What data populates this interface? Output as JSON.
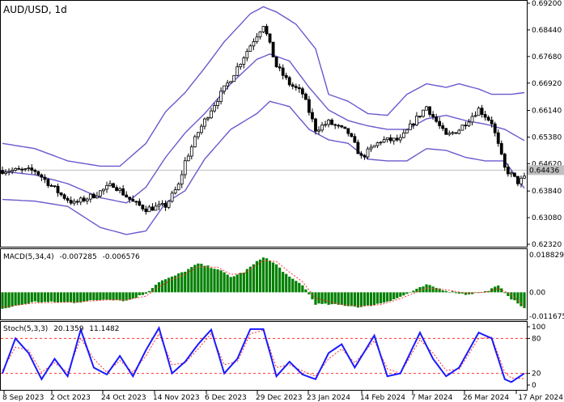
{
  "chart_data": [
    {
      "type": "candlestick",
      "title": "AUD/USD, 1d",
      "y_ticks": [
        "0.69200",
        "0.68440",
        "0.67680",
        "0.66920",
        "0.66140",
        "0.65380",
        "0.64620",
        "0.63840",
        "0.63080",
        "0.62320"
      ],
      "ylim": [
        0.6232,
        0.692
      ],
      "current_price": "0.64436",
      "x_ticks": [
        "8 Sep 2023",
        "2 Oct 2023",
        "24 Oct 2023",
        "14 Nov 2023",
        "6 Dec 2023",
        "29 Dec 2023",
        "23 Jan 2024",
        "14 Feb 2024",
        "7 Mar 2024",
        "26 Mar 2024",
        "17 Apr 2024"
      ],
      "indicator": "Bollinger Bands",
      "close_path": [
        [
          0,
          0.6443
        ],
        [
          10,
          0.6442
        ],
        [
          18,
          0.6373
        ],
        [
          22,
          0.6348
        ],
        [
          28,
          0.6372
        ],
        [
          34,
          0.6403
        ],
        [
          40,
          0.6352
        ],
        [
          44,
          0.6333
        ],
        [
          50,
          0.6342
        ],
        [
          54,
          0.64
        ],
        [
          56,
          0.6468
        ],
        [
          60,
          0.6552
        ],
        [
          64,
          0.6618
        ],
        [
          70,
          0.6705
        ],
        [
          76,
          0.68
        ],
        [
          80,
          0.686
        ],
        [
          84,
          0.674
        ],
        [
          88,
          0.669
        ],
        [
          92,
          0.6662
        ],
        [
          96,
          0.656
        ],
        [
          100,
          0.658
        ],
        [
          106,
          0.655
        ],
        [
          110,
          0.648
        ],
        [
          116,
          0.6528
        ],
        [
          122,
          0.653
        ],
        [
          126,
          0.658
        ],
        [
          130,
          0.6625
        ],
        [
          136,
          0.654
        ],
        [
          140,
          0.656
        ],
        [
          146,
          0.6618
        ],
        [
          150,
          0.658
        ],
        [
          154,
          0.6448
        ],
        [
          156,
          0.643
        ],
        [
          158,
          0.641
        ],
        [
          160,
          0.642
        ]
      ],
      "bollinger_upper": [
        [
          0,
          0.652
        ],
        [
          10,
          0.6505
        ],
        [
          20,
          0.647
        ],
        [
          30,
          0.6455
        ],
        [
          36,
          0.6455
        ],
        [
          44,
          0.652
        ],
        [
          50,
          0.661
        ],
        [
          56,
          0.6665
        ],
        [
          62,
          0.6735
        ],
        [
          68,
          0.681
        ],
        [
          76,
          0.689
        ],
        [
          80,
          0.691
        ],
        [
          84,
          0.6895
        ],
        [
          90,
          0.686
        ],
        [
          96,
          0.679
        ],
        [
          100,
          0.666
        ],
        [
          106,
          0.664
        ],
        [
          112,
          0.6605
        ],
        [
          118,
          0.66
        ],
        [
          124,
          0.666
        ],
        [
          130,
          0.669
        ],
        [
          136,
          0.668
        ],
        [
          140,
          0.669
        ],
        [
          146,
          0.6675
        ],
        [
          150,
          0.666
        ],
        [
          156,
          0.666
        ],
        [
          160,
          0.6665
        ]
      ],
      "bollinger_middle": [
        [
          0,
          0.644
        ],
        [
          10,
          0.643
        ],
        [
          20,
          0.6405
        ],
        [
          30,
          0.6365
        ],
        [
          38,
          0.635
        ],
        [
          44,
          0.6395
        ],
        [
          50,
          0.648
        ],
        [
          56,
          0.655
        ],
        [
          62,
          0.6605
        ],
        [
          70,
          0.669
        ],
        [
          78,
          0.676
        ],
        [
          82,
          0.6775
        ],
        [
          88,
          0.6755
        ],
        [
          94,
          0.668
        ],
        [
          100,
          0.6615
        ],
        [
          106,
          0.6585
        ],
        [
          112,
          0.657
        ],
        [
          118,
          0.656
        ],
        [
          124,
          0.656
        ],
        [
          130,
          0.659
        ],
        [
          136,
          0.66
        ],
        [
          142,
          0.6585
        ],
        [
          148,
          0.6575
        ],
        [
          154,
          0.656
        ],
        [
          160,
          0.6528
        ]
      ],
      "bollinger_lower": [
        [
          0,
          0.636
        ],
        [
          10,
          0.6355
        ],
        [
          20,
          0.634
        ],
        [
          30,
          0.628
        ],
        [
          38,
          0.626
        ],
        [
          44,
          0.627
        ],
        [
          50,
          0.635
        ],
        [
          56,
          0.6385
        ],
        [
          62,
          0.6475
        ],
        [
          70,
          0.656
        ],
        [
          78,
          0.6605
        ],
        [
          82,
          0.664
        ],
        [
          88,
          0.6625
        ],
        [
          94,
          0.656
        ],
        [
          100,
          0.653
        ],
        [
          106,
          0.652
        ],
        [
          112,
          0.6475
        ],
        [
          118,
          0.647
        ],
        [
          124,
          0.647
        ],
        [
          130,
          0.6505
        ],
        [
          136,
          0.65
        ],
        [
          142,
          0.648
        ],
        [
          148,
          0.647
        ],
        [
          154,
          0.647
        ],
        [
          160,
          0.6392
        ]
      ]
    },
    {
      "type": "bar",
      "title": "MACD(5,34,4)",
      "value_labels": [
        "-0.007285",
        "-0.006576"
      ],
      "y_ticks": [
        "0.018829",
        "0.00",
        "-0.011675"
      ],
      "ylim": [
        -0.011675,
        0.018829
      ],
      "histogram_path": [
        [
          0,
          -0.0078
        ],
        [
          10,
          -0.0045
        ],
        [
          22,
          -0.0048
        ],
        [
          32,
          -0.0032
        ],
        [
          38,
          -0.004
        ],
        [
          44,
          -0.0005
        ],
        [
          48,
          0.005
        ],
        [
          52,
          0.0072
        ],
        [
          56,
          0.01
        ],
        [
          60,
          0.0135
        ],
        [
          66,
          0.011
        ],
        [
          70,
          0.0072
        ],
        [
          74,
          0.0095
        ],
        [
          80,
          0.0168
        ],
        [
          84,
          0.013
        ],
        [
          88,
          0.007
        ],
        [
          92,
          0.0035
        ],
        [
          96,
          -0.0055
        ],
        [
          104,
          -0.006
        ],
        [
          110,
          -0.007
        ],
        [
          116,
          -0.0052
        ],
        [
          122,
          -0.0022
        ],
        [
          130,
          0.0035
        ],
        [
          136,
          0.0008
        ],
        [
          142,
          -0.001
        ],
        [
          148,
          0.0003
        ],
        [
          152,
          0.003
        ],
        [
          156,
          -0.003
        ],
        [
          160,
          -0.0075
        ]
      ],
      "signal_path": [
        [
          0,
          -0.007
        ],
        [
          10,
          -0.005
        ],
        [
          22,
          -0.0046
        ],
        [
          32,
          -0.0036
        ],
        [
          38,
          -0.0036
        ],
        [
          44,
          -0.0018
        ],
        [
          48,
          0.0025
        ],
        [
          52,
          0.006
        ],
        [
          56,
          0.0085
        ],
        [
          60,
          0.012
        ],
        [
          66,
          0.0118
        ],
        [
          70,
          0.0085
        ],
        [
          74,
          0.0088
        ],
        [
          80,
          0.015
        ],
        [
          84,
          0.0145
        ],
        [
          88,
          0.0095
        ],
        [
          92,
          0.005
        ],
        [
          96,
          -0.0028
        ],
        [
          104,
          -0.0058
        ],
        [
          110,
          -0.0066
        ],
        [
          116,
          -0.0058
        ],
        [
          122,
          -0.003
        ],
        [
          130,
          0.002
        ],
        [
          136,
          0.0012
        ],
        [
          142,
          -0.0004
        ],
        [
          148,
          0.0
        ],
        [
          152,
          0.0018
        ],
        [
          156,
          -0.001
        ],
        [
          160,
          -0.0066
        ]
      ]
    },
    {
      "type": "line",
      "title": "Stoch(5,3,3)",
      "value_labels": [
        "20.1359",
        "11.1482"
      ],
      "y_ticks": [
        "100",
        "80",
        "20",
        "0"
      ],
      "ylim": [
        0,
        100
      ],
      "levels": [
        80,
        20
      ],
      "main_path": [
        [
          0,
          20
        ],
        [
          4,
          80
        ],
        [
          8,
          55
        ],
        [
          12,
          10
        ],
        [
          16,
          45
        ],
        [
          20,
          15
        ],
        [
          24,
          95
        ],
        [
          28,
          30
        ],
        [
          32,
          18
        ],
        [
          36,
          50
        ],
        [
          40,
          15
        ],
        [
          44,
          60
        ],
        [
          48,
          98
        ],
        [
          52,
          20
        ],
        [
          56,
          40
        ],
        [
          60,
          70
        ],
        [
          64,
          95
        ],
        [
          68,
          20
        ],
        [
          72,
          45
        ],
        [
          76,
          96
        ],
        [
          80,
          96
        ],
        [
          84,
          15
        ],
        [
          88,
          40
        ],
        [
          92,
          18
        ],
        [
          96,
          10
        ],
        [
          100,
          55
        ],
        [
          104,
          70
        ],
        [
          108,
          30
        ],
        [
          114,
          85
        ],
        [
          118,
          15
        ],
        [
          122,
          20
        ],
        [
          128,
          90
        ],
        [
          132,
          45
        ],
        [
          136,
          15
        ],
        [
          140,
          30
        ],
        [
          146,
          90
        ],
        [
          150,
          80
        ],
        [
          154,
          10
        ],
        [
          156,
          5
        ],
        [
          160,
          20
        ]
      ],
      "signal_path": [
        [
          0,
          25
        ],
        [
          4,
          65
        ],
        [
          8,
          60
        ],
        [
          12,
          22
        ],
        [
          16,
          38
        ],
        [
          20,
          22
        ],
        [
          24,
          80
        ],
        [
          28,
          45
        ],
        [
          32,
          22
        ],
        [
          36,
          42
        ],
        [
          40,
          22
        ],
        [
          44,
          50
        ],
        [
          48,
          88
        ],
        [
          52,
          35
        ],
        [
          56,
          38
        ],
        [
          60,
          62
        ],
        [
          64,
          88
        ],
        [
          68,
          35
        ],
        [
          72,
          40
        ],
        [
          76,
          88
        ],
        [
          80,
          94
        ],
        [
          84,
          30
        ],
        [
          88,
          35
        ],
        [
          92,
          24
        ],
        [
          96,
          15
        ],
        [
          100,
          45
        ],
        [
          104,
          62
        ],
        [
          108,
          38
        ],
        [
          114,
          76
        ],
        [
          118,
          28
        ],
        [
          122,
          20
        ],
        [
          128,
          78
        ],
        [
          132,
          55
        ],
        [
          136,
          25
        ],
        [
          140,
          27
        ],
        [
          146,
          80
        ],
        [
          150,
          82
        ],
        [
          154,
          22
        ],
        [
          156,
          12
        ],
        [
          160,
          11
        ]
      ]
    }
  ],
  "colors": {
    "candle": "#000000",
    "bands": "#6a5acd",
    "macd_hist": "#008000",
    "macd_signal": "#ff3030",
    "stoch_main": "#1a1aff",
    "stoch_signal": "#ff3030",
    "grid_border": "#000000",
    "price_line": "#c0c0c0"
  }
}
